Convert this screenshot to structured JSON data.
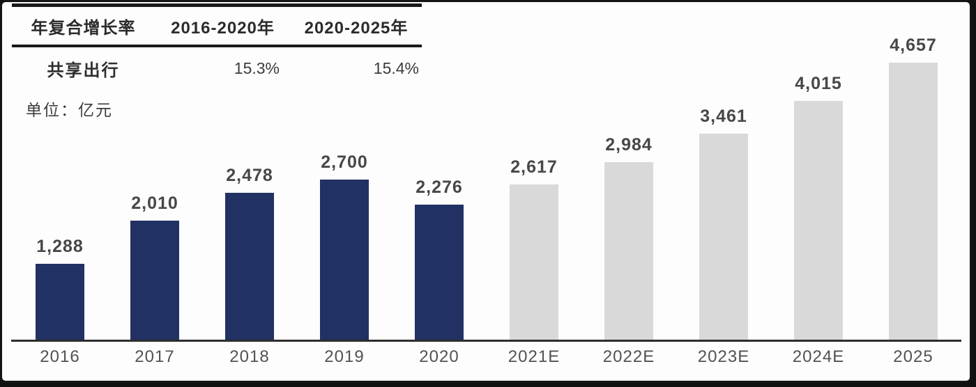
{
  "growth_table": {
    "header": {
      "col1": "年复合增长率",
      "col2": "2016-2020年",
      "col3": "2020-2025年"
    },
    "row": {
      "label": "共享出行",
      "val1": "15.3%",
      "val2": "15.4%"
    }
  },
  "unit_label": "单位：亿元",
  "chart_data": {
    "type": "bar",
    "title": "",
    "xlabel": "",
    "ylabel": "单位：亿元",
    "categories": [
      "2016",
      "2017",
      "2018",
      "2019",
      "2020",
      "2021E",
      "2022E",
      "2023E",
      "2024E",
      "2025"
    ],
    "values": [
      1288,
      2010,
      2478,
      2700,
      2276,
      2617,
      2984,
      3461,
      4015,
      4657
    ],
    "value_labels": [
      "1,288",
      "2,010",
      "2,478",
      "2,700",
      "2,276",
      "2,617",
      "2,984",
      "3,461",
      "4,015",
      "4,657"
    ],
    "actual_series_count": 5,
    "colors": {
      "actual": "#223163",
      "forecast": "#d9d9d9",
      "axis": "#2d2d2d"
    },
    "ylim": [
      0,
      4657
    ],
    "grid": false,
    "legend_position": "none",
    "annotations": {
      "cagr_2016_2020": "15.3%",
      "cagr_2020_2025": "15.4%"
    }
  }
}
